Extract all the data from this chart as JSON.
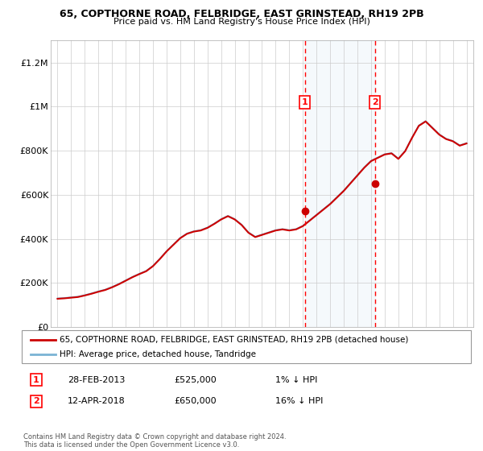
{
  "title1": "65, COPTHORNE ROAD, FELBRIDGE, EAST GRINSTEAD, RH19 2PB",
  "title2": "Price paid vs. HM Land Registry's House Price Index (HPI)",
  "legend_line1": "65, COPTHORNE ROAD, FELBRIDGE, EAST GRINSTEAD, RH19 2PB (detached house)",
  "legend_line2": "HPI: Average price, detached house, Tandridge",
  "transaction1_date": "28-FEB-2013",
  "transaction1_price": "£525,000",
  "transaction1_hpi": "1% ↓ HPI",
  "transaction2_date": "12-APR-2018",
  "transaction2_price": "£650,000",
  "transaction2_hpi": "16% ↓ HPI",
  "footer": "Contains HM Land Registry data © Crown copyright and database right 2024.\nThis data is licensed under the Open Government Licence v3.0.",
  "property_color": "#cc0000",
  "hpi_color": "#7ab3d4",
  "transaction1_year": 2013.15,
  "transaction2_year": 2018.28,
  "shaded_region_color": "#daeaf5",
  "ylim": [
    0,
    1300000
  ],
  "yticks": [
    0,
    200000,
    400000,
    600000,
    800000,
    1000000,
    1200000
  ],
  "ytick_labels": [
    "£0",
    "£200K",
    "£400K",
    "£600K",
    "£800K",
    "£1M",
    "£1.2M"
  ],
  "xmin": 1994.5,
  "xmax": 2025.5
}
